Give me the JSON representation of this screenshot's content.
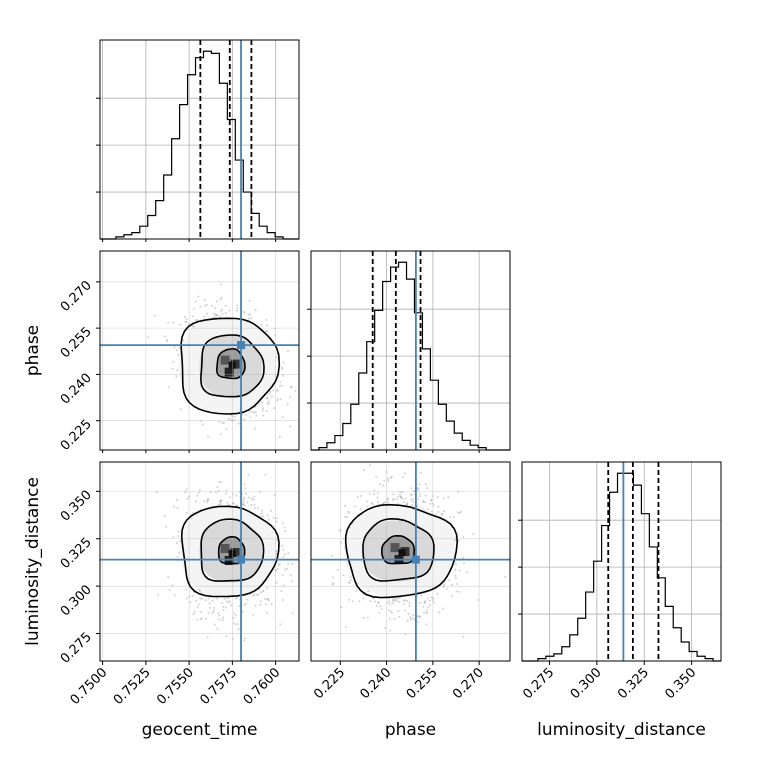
{
  "chart_data": {
    "type": "corner",
    "parameters": [
      {
        "name": "geocent_time",
        "label": "geocent_time",
        "range": [
          0.74985,
          0.76135
        ],
        "ticks": [
          "0.7500",
          "0.7525",
          "0.7550",
          "0.7575",
          "0.7600"
        ],
        "tick_values": [
          0.75,
          0.7525,
          0.755,
          0.7575,
          0.76
        ],
        "truth": 0.758,
        "quantiles": [
          0.75565,
          0.75735,
          0.7586
        ]
      },
      {
        "name": "phase",
        "label": "phase",
        "range": [
          0.2155,
          0.28
        ],
        "ticks": [
          "0.225",
          "0.240",
          "0.255",
          "0.270"
        ],
        "tick_values": [
          0.225,
          0.24,
          0.255,
          0.27
        ],
        "truth": 0.2495,
        "quantiles": [
          0.2355,
          0.243,
          0.251
        ]
      },
      {
        "name": "luminosity_distance",
        "label": "luminosity_distance",
        "range": [
          0.2605,
          0.3655
        ],
        "ticks": [
          "0.275",
          "0.300",
          "0.325",
          "0.350"
        ],
        "tick_values": [
          0.275,
          0.3,
          0.325,
          0.35
        ],
        "truth": 0.314,
        "quantiles": [
          0.306,
          0.319,
          0.3325
        ]
      }
    ],
    "hist_1d": [
      {
        "param": "geocent_time",
        "counts": [
          0,
          0,
          1,
          2,
          3,
          6,
          11,
          18,
          30,
          47,
          63,
          77,
          85,
          88,
          87,
          73,
          56,
          37,
          22,
          12,
          6,
          3,
          1,
          0,
          0
        ]
      },
      {
        "param": "phase",
        "counts": [
          0,
          1,
          3,
          6,
          11,
          19,
          32,
          45,
          58,
          70,
          76,
          78,
          71,
          57,
          42,
          29,
          19,
          12,
          7,
          4,
          2,
          1,
          0,
          0,
          0
        ]
      },
      {
        "param": "luminosity_distance",
        "counts": [
          0,
          0,
          1,
          2,
          3,
          6,
          11,
          18,
          29,
          42,
          57,
          71,
          79,
          79,
          74,
          62,
          48,
          35,
          23,
          14,
          8,
          4,
          2,
          1,
          0
        ]
      }
    ],
    "hist_2d": [
      {
        "x": "geocent_time",
        "y": "phase",
        "mean": [
          0.7574,
          0.2435
        ],
        "sd": [
          0.0011,
          0.0068
        ],
        "corr": -0.25,
        "contour_rings": [
          [
            0.7566,
            0.2385,
            0.7582,
            0.248
          ],
          [
            0.7556,
            0.2325,
            0.7592,
            0.2525
          ],
          [
            0.7544,
            0.2275,
            0.76,
            0.2585
          ]
        ]
      },
      {
        "x": "geocent_time",
        "y": "luminosity_distance",
        "mean": [
          0.7574,
          0.318
        ],
        "sd": [
          0.0011,
          0.013
        ],
        "corr": 0.0,
        "contour_rings": [
          [
            0.7567,
            0.3115,
            0.7582,
            0.3255
          ],
          [
            0.7556,
            0.302,
            0.7592,
            0.3345
          ],
          [
            0.7545,
            0.2945,
            0.76,
            0.342
          ]
        ]
      },
      {
        "x": "phase",
        "y": "luminosity_distance",
        "mean": [
          0.2445,
          0.3185
        ],
        "sd": [
          0.0069,
          0.013
        ],
        "corr": 0.0,
        "contour_rings": [
          [
            0.2385,
            0.3115,
            0.249,
            0.326
          ],
          [
            0.232,
            0.3025,
            0.255,
            0.3345
          ],
          [
            0.2265,
            0.2945,
            0.262,
            0.3425
          ]
        ]
      }
    ],
    "truth_color": "#4682b4",
    "grid": true
  }
}
